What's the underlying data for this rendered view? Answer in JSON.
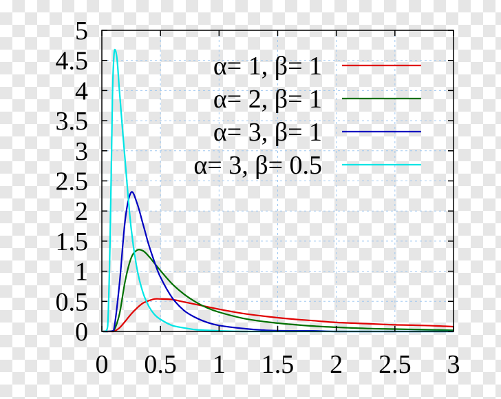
{
  "chart_data": {
    "type": "line",
    "title": "",
    "xlabel": "",
    "ylabel": "",
    "xlim": [
      0,
      3
    ],
    "ylim": [
      0,
      5
    ],
    "grid": true,
    "legend_position": "top-right",
    "x_ticks": [
      {
        "value": 0,
        "label": "0"
      },
      {
        "value": 0.5,
        "label": "0.5"
      },
      {
        "value": 1,
        "label": "1"
      },
      {
        "value": 1.5,
        "label": "1.5"
      },
      {
        "value": 2,
        "label": "2"
      },
      {
        "value": 2.5,
        "label": "2.5"
      },
      {
        "value": 3,
        "label": "3"
      }
    ],
    "y_ticks": [
      {
        "value": 0,
        "label": "0"
      },
      {
        "value": 0.5,
        "label": "0.5"
      },
      {
        "value": 1,
        "label": "1"
      },
      {
        "value": 1.5,
        "label": "1.5"
      },
      {
        "value": 2,
        "label": "2"
      },
      {
        "value": 2.5,
        "label": "2.5"
      },
      {
        "value": 3,
        "label": "3"
      },
      {
        "value": 3.5,
        "label": "3.5"
      },
      {
        "value": 4,
        "label": "4"
      },
      {
        "value": 4.5,
        "label": "4.5"
      },
      {
        "value": 5,
        "label": "5"
      }
    ],
    "series": [
      {
        "name": "α= 1, β= 1",
        "color": "#e00000",
        "x": [
          0.01,
          0.05,
          0.1,
          0.15,
          0.2,
          0.25,
          0.3,
          0.35,
          0.4,
          0.45,
          0.5,
          0.6,
          0.7,
          0.8,
          0.9,
          1,
          1.2,
          1.4,
          1.6,
          1.8,
          2,
          2.25,
          2.5,
          2.75,
          3
        ],
        "y": [
          0,
          0,
          0,
          0.06,
          0.17,
          0.29,
          0.39,
          0.47,
          0.51,
          0.54,
          0.54,
          0.53,
          0.49,
          0.45,
          0.41,
          0.37,
          0.3,
          0.25,
          0.21,
          0.18,
          0.15,
          0.13,
          0.11,
          0.1,
          0.08
        ]
      },
      {
        "name": "α= 2, β= 1",
        "color": "#007000",
        "x": [
          0.01,
          0.05,
          0.1,
          0.15,
          0.2,
          0.25,
          0.3,
          0.35,
          0.4,
          0.45,
          0.5,
          0.6,
          0.7,
          0.8,
          0.9,
          1,
          1.2,
          1.4,
          1.6,
          1.8,
          2,
          2.25,
          2.5,
          2.75,
          3
        ],
        "y": [
          0,
          0,
          0.01,
          0.29,
          0.85,
          1.22,
          1.35,
          1.34,
          1.25,
          1.13,
          1.01,
          0.79,
          0.62,
          0.49,
          0.39,
          0.32,
          0.22,
          0.16,
          0.12,
          0.09,
          0.07,
          0.05,
          0.04,
          0.03,
          0.02
        ]
      },
      {
        "name": "α= 3, β= 1",
        "color": "#0000c0",
        "x": [
          0.01,
          0.05,
          0.1,
          0.15,
          0.2,
          0.25,
          0.3,
          0.35,
          0.4,
          0.45,
          0.5,
          0.6,
          0.7,
          0.8,
          0.9,
          1,
          1.2,
          1.4,
          1.6,
          1.8,
          2,
          2.25,
          2.5,
          2.75,
          3
        ],
        "y": [
          0,
          0,
          0.01,
          0.79,
          1.87,
          2.31,
          2.13,
          1.79,
          1.44,
          1.15,
          0.9,
          0.56,
          0.35,
          0.23,
          0.15,
          0.1,
          0.05,
          0.02,
          0.01,
          0.01,
          0,
          0,
          0,
          0,
          0
        ]
      },
      {
        "name": "α= 3, β= 0.5",
        "color": "#00e5e5",
        "x": [
          0.01,
          0.03,
          0.05,
          0.07,
          0.09,
          0.1,
          0.11,
          0.13,
          0.15,
          0.2,
          0.25,
          0.3,
          0.35,
          0.4,
          0.45,
          0.5,
          0.6,
          0.7,
          0.8,
          0.9,
          1,
          1.2,
          1.5,
          2,
          3
        ],
        "y": [
          0,
          0,
          0.09,
          1.49,
          3.84,
          4.46,
          4.68,
          4.52,
          3.99,
          2.8,
          1.71,
          1.04,
          0.65,
          0.42,
          0.28,
          0.2,
          0.1,
          0.06,
          0.03,
          0.02,
          0.01,
          0,
          0,
          0,
          0
        ]
      }
    ]
  }
}
